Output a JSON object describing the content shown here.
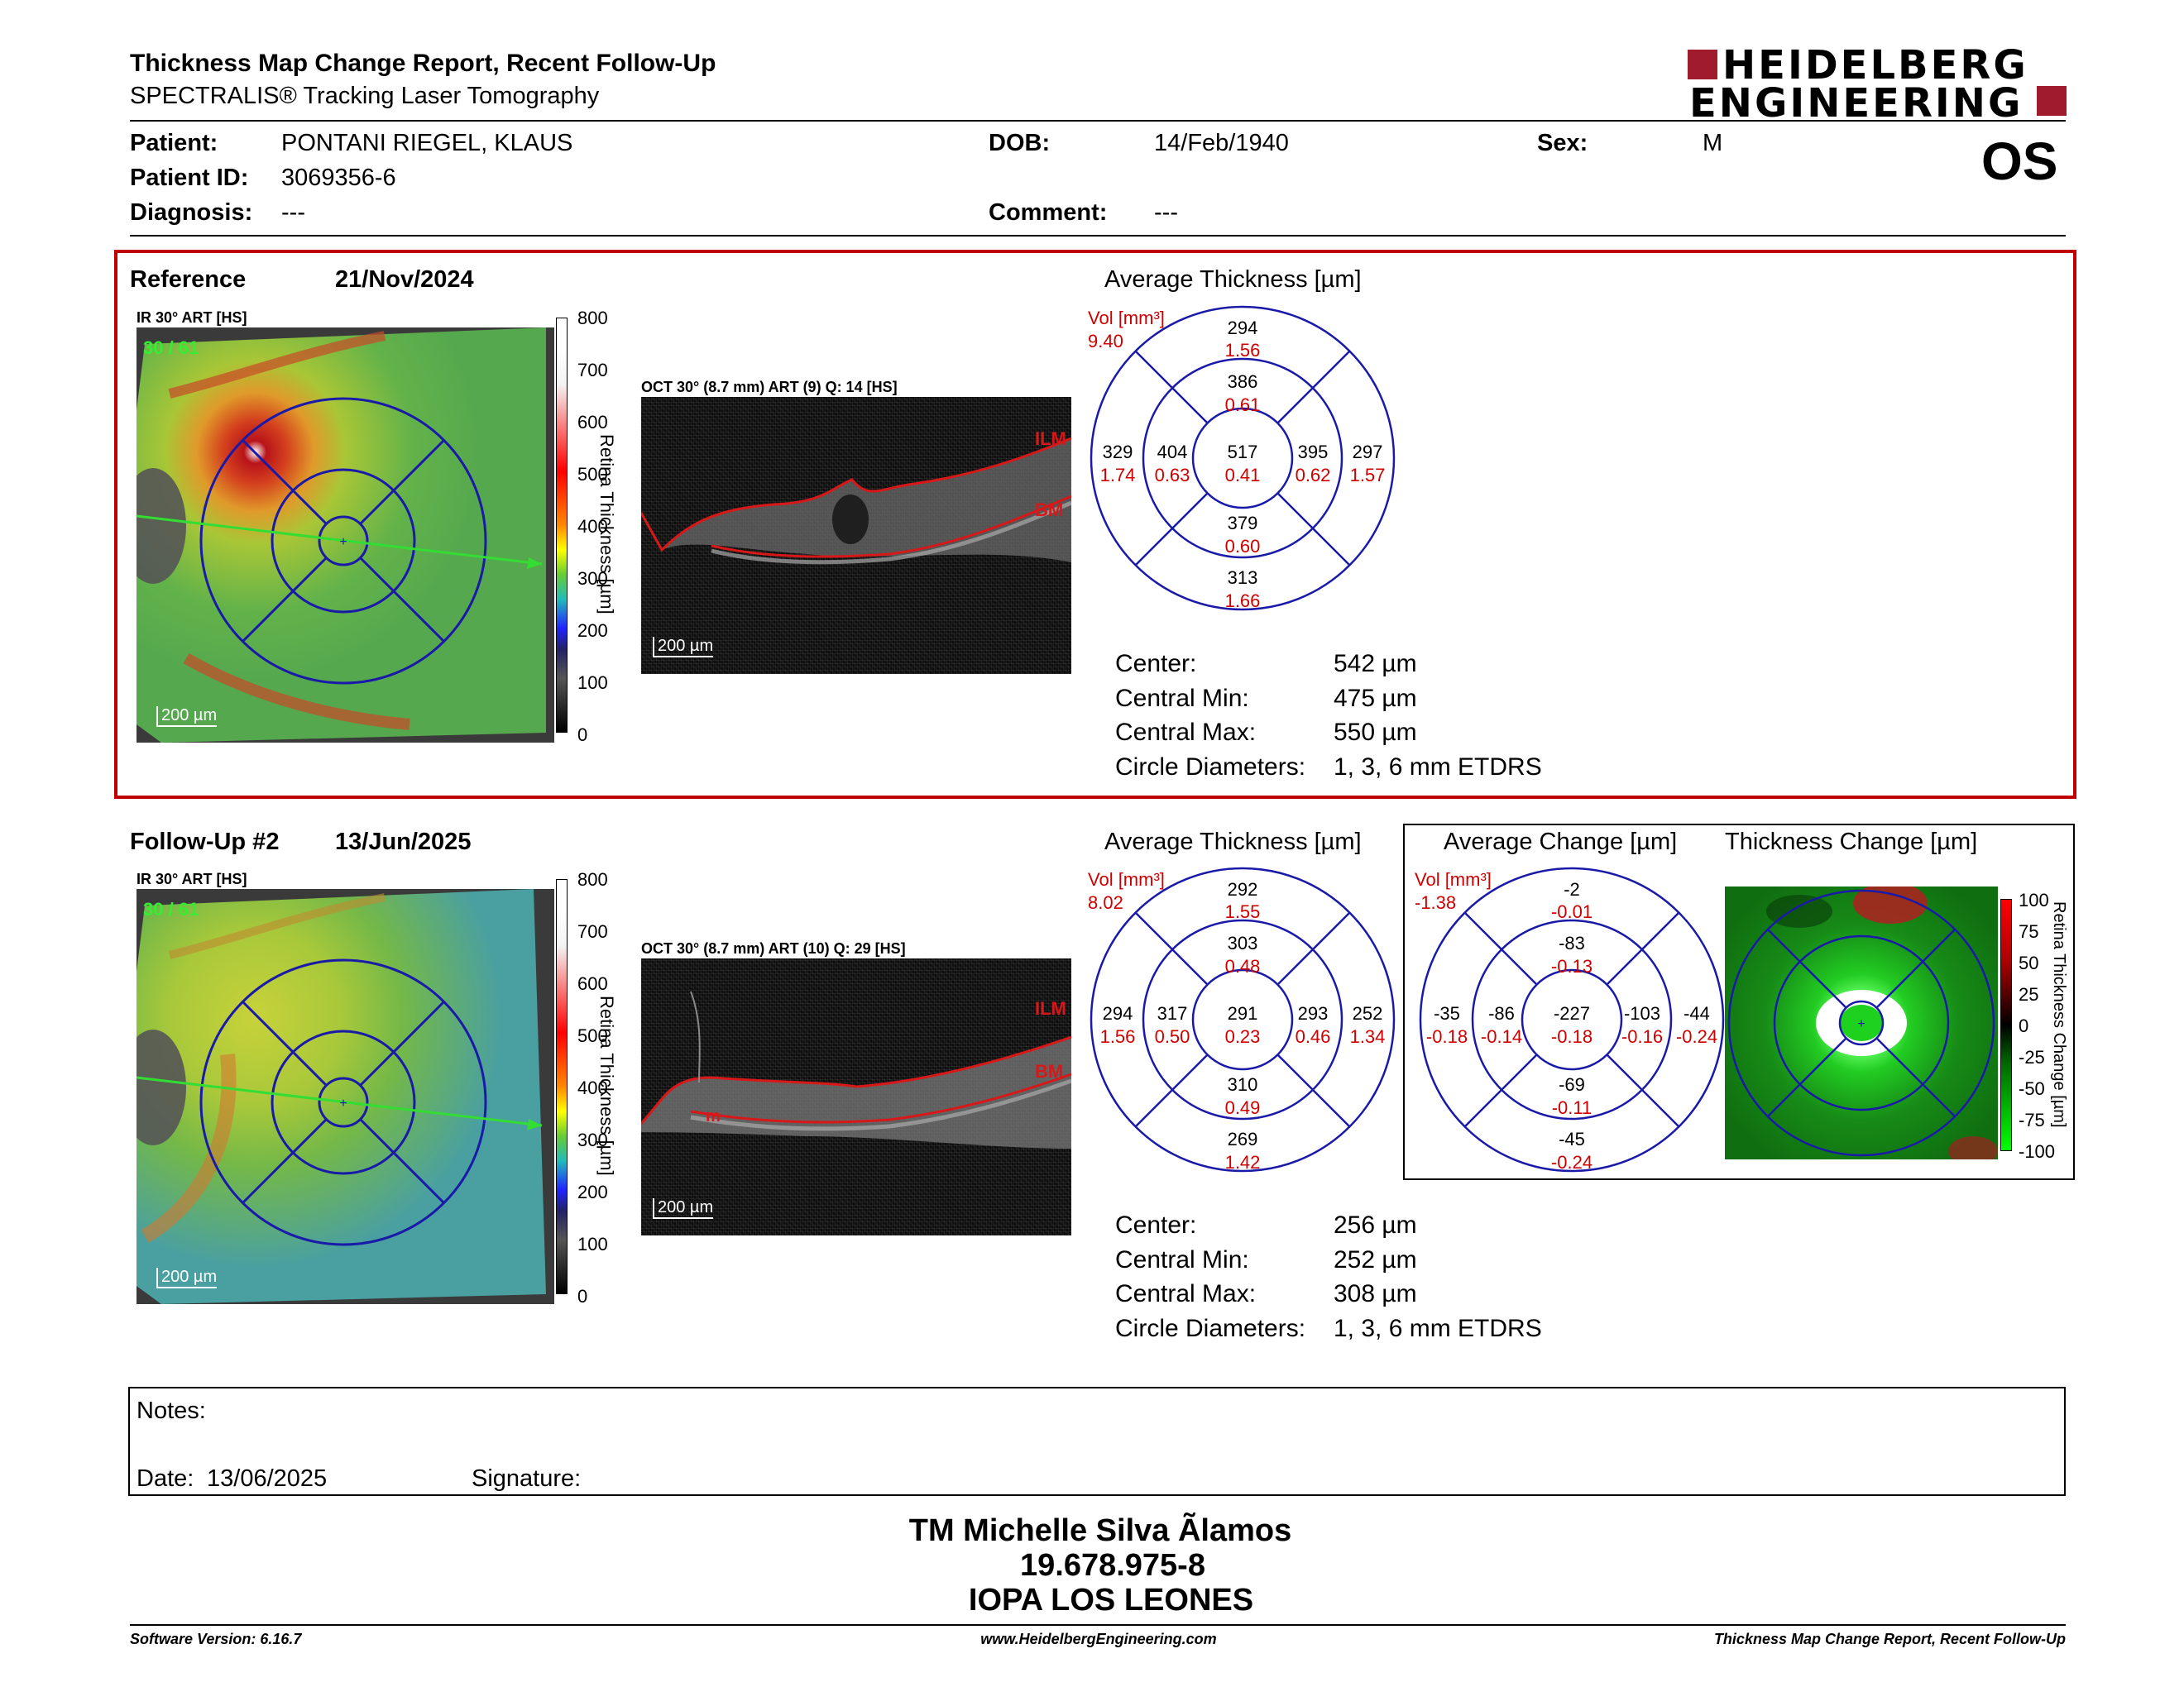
{
  "header": {
    "title": "Thickness Map Change Report, Recent Follow-Up",
    "subtitle": "SPECTRALIS® Tracking Laser Tomography",
    "logo_line1": "HEIDELBERG",
    "logo_line2": "ENGINEERING",
    "eye": "OS"
  },
  "patient": {
    "name_label": "Patient:",
    "name": "PONTANI RIEGEL, KLAUS",
    "id_label": "Patient ID:",
    "id": "3069356-6",
    "diag_label": "Diagnosis:",
    "diag": "---",
    "dob_label": "DOB:",
    "dob": "14/Feb/1940",
    "comment_label": "Comment:",
    "comment": "---",
    "sex_label": "Sex:",
    "sex": "M"
  },
  "reference": {
    "label": "Reference",
    "date": "21/Nov/2024",
    "ir_title": "IR 30° ART [HS]",
    "ir_art": "30 / 61",
    "scale": "200 µm",
    "oct_title": "OCT 30° (8.7 mm) ART (9) Q: 14 [HS]",
    "oct_scale": "200 µm",
    "ilm": "ILM",
    "bm": "BM",
    "avg_title": "Average Thickness [µm]",
    "vol_label": "Vol [mm³]",
    "vol": "9.40",
    "etdrs": {
      "center": [
        "517",
        "0.41"
      ],
      "inner_top": [
        "386",
        "0.61"
      ],
      "inner_bottom": [
        "379",
        "0.60"
      ],
      "inner_left": [
        "404",
        "0.63"
      ],
      "inner_right": [
        "395",
        "0.62"
      ],
      "outer_top": [
        "294",
        "1.56"
      ],
      "outer_bottom": [
        "313",
        "1.66"
      ],
      "outer_left": [
        "329",
        "1.74"
      ],
      "outer_right": [
        "297",
        "1.57"
      ]
    },
    "stats": {
      "center_label": "Center:",
      "center": "542 µm",
      "min_label": "Central Min:",
      "min": "475 µm",
      "max_label": "Central Max:",
      "max": "550 µm",
      "diam_label": "Circle Diameters:",
      "diam": "1, 3, 6 mm ETDRS"
    }
  },
  "followup": {
    "label": "Follow-Up #2",
    "date": "13/Jun/2025",
    "ir_title": "IR 30° ART [HS]",
    "ir_art": "30 / 61",
    "scale": "200 µm",
    "oct_title": "OCT 30° (8.7 mm) ART (10) Q: 29 [HS]",
    "oct_scale": "200 µm",
    "ilm": "ILM",
    "bm": "BM",
    "m": "m",
    "avg_title": "Average Thickness [µm]",
    "vol_label": "Vol [mm³]",
    "vol": "8.02",
    "etdrs": {
      "center": [
        "291",
        "0.23"
      ],
      "inner_top": [
        "303",
        "0.48"
      ],
      "inner_bottom": [
        "310",
        "0.49"
      ],
      "inner_left": [
        "317",
        "0.50"
      ],
      "inner_right": [
        "293",
        "0.46"
      ],
      "outer_top": [
        "292",
        "1.55"
      ],
      "outer_bottom": [
        "269",
        "1.42"
      ],
      "outer_left": [
        "294",
        "1.56"
      ],
      "outer_right": [
        "252",
        "1.34"
      ]
    },
    "change_title": "Average Change [µm]",
    "change_vol_label": "Vol [mm³]",
    "change_vol": "-1.38",
    "change": {
      "center": [
        "-227",
        "-0.18"
      ],
      "inner_top": [
        "-83",
        "-0.13"
      ],
      "inner_bottom": [
        "-69",
        "-0.11"
      ],
      "inner_left": [
        "-86",
        "-0.14"
      ],
      "inner_right": [
        "-103",
        "-0.16"
      ],
      "outer_top": [
        "-2",
        "-0.01"
      ],
      "outer_bottom": [
        "-45",
        "-0.24"
      ],
      "outer_left": [
        "-35",
        "-0.18"
      ],
      "outer_right": [
        "-44",
        "-0.24"
      ]
    },
    "map_title": "Thickness Change [µm]",
    "map_axis": "Retina Thickness Change [µm]",
    "stats": {
      "center_label": "Center:",
      "center": "256 µm",
      "min_label": "Central Min:",
      "min": "252 µm",
      "max_label": "Central Max:",
      "max": "308 µm",
      "diam_label": "Circle Diameters:",
      "diam": "1, 3, 6 mm ETDRS"
    }
  },
  "colorbar": {
    "ticks": [
      "800",
      "700",
      "600",
      "500",
      "400",
      "300",
      "200",
      "100",
      "0"
    ],
    "axis": "Retina Thickness [µm]"
  },
  "changebar": {
    "ticks": [
      "100",
      "75",
      "50",
      "25",
      "0",
      "-25",
      "-50",
      "-75",
      "-100"
    ]
  },
  "notes": {
    "label": "Notes:",
    "date_label": "Date:",
    "date": "13/06/2025",
    "sig_label": "Signature:"
  },
  "signature": {
    "name": "TM Michelle Silva Ãlamos",
    "rut": "19.678.975-8",
    "org": "IOPA LOS LEONES"
  },
  "footer": {
    "software": "Software Version: 6.16.7",
    "url": "www.HeidelbergEngineering.com",
    "report": "Thickness Map Change Report, Recent Follow-Up"
  }
}
